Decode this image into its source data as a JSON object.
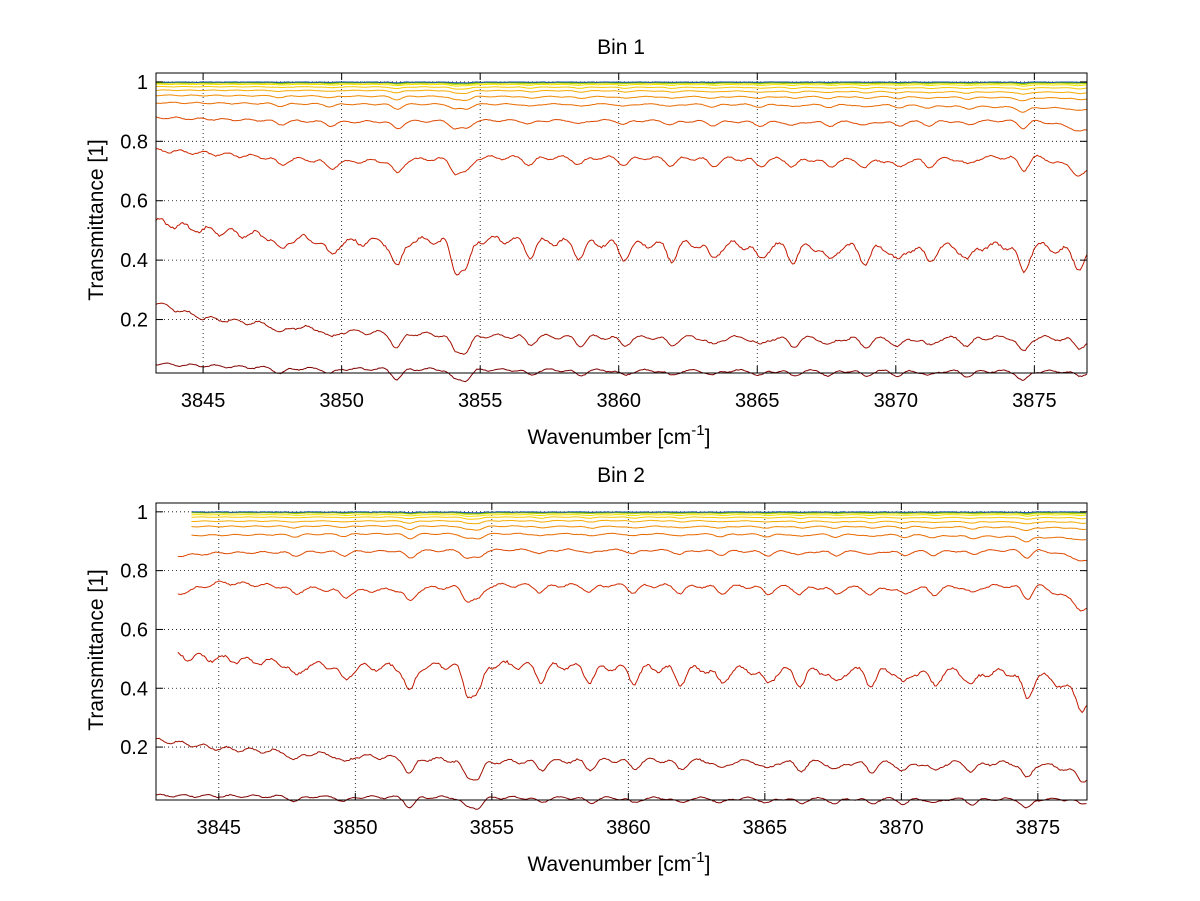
{
  "chart_data": [
    {
      "type": "line",
      "title": "Bin 1",
      "xlabel": "Wavenumber [cm",
      "xlabel_sup": "-1",
      "xlabel_end": "]",
      "ylabel": "Transmittance [1]",
      "xlim": [
        3843.3,
        3876.9
      ],
      "ylim": [
        0.02,
        1.03
      ],
      "xticks": [
        3845,
        3850,
        3855,
        3860,
        3865,
        3870,
        3875
      ],
      "xtick_labels": [
        "3845",
        "3850",
        "3855",
        "3860",
        "3865",
        "3870",
        "3875"
      ],
      "yticks": [
        0.2,
        0.4,
        0.6,
        0.8,
        1
      ],
      "ytick_labels": [
        "0.2",
        "0.4",
        "0.6",
        "0.8",
        "1"
      ],
      "grid": true,
      "legend": "none",
      "series": [
        {
          "color": "#800000",
          "baseline": [
            [
              3843.3,
              0.05
            ],
            [
              3848,
              0.035
            ],
            [
              3860,
              0.028
            ],
            [
              3876.9,
              0.025
            ]
          ]
        },
        {
          "color": "#a01000",
          "baseline": [
            [
              3843.3,
              0.255
            ],
            [
              3845,
              0.205
            ],
            [
              3850,
              0.16
            ],
            [
              3855,
              0.145
            ],
            [
              3860,
              0.14
            ],
            [
              3865,
              0.138
            ],
            [
              3870,
              0.135
            ],
            [
              3875,
              0.14
            ],
            [
              3876.9,
              0.13
            ]
          ]
        },
        {
          "color": "#c01800",
          "baseline": [
            [
              3843.3,
              0.53
            ],
            [
              3845,
              0.5
            ],
            [
              3850,
              0.46
            ],
            [
              3855,
              0.47
            ],
            [
              3860,
              0.455
            ],
            [
              3865,
              0.45
            ],
            [
              3870,
              0.44
            ],
            [
              3875,
              0.45
            ],
            [
              3876.9,
              0.42
            ]
          ]
        },
        {
          "color": "#d02a00",
          "baseline": [
            [
              3843.3,
              0.77
            ],
            [
              3845,
              0.76
            ],
            [
              3850,
              0.73
            ],
            [
              3855,
              0.745
            ],
            [
              3860,
              0.745
            ],
            [
              3865,
              0.74
            ],
            [
              3870,
              0.735
            ],
            [
              3875,
              0.75
            ],
            [
              3876.9,
              0.7
            ]
          ]
        },
        {
          "color": "#de4a00",
          "baseline": [
            [
              3843.3,
              0.88
            ],
            [
              3845,
              0.875
            ],
            [
              3850,
              0.865
            ],
            [
              3855,
              0.87
            ],
            [
              3860,
              0.87
            ],
            [
              3865,
              0.865
            ],
            [
              3870,
              0.865
            ],
            [
              3875,
              0.87
            ],
            [
              3876.9,
              0.84
            ]
          ]
        },
        {
          "color": "#e86a00",
          "baseline": [
            [
              3843.3,
              0.93
            ],
            [
              3850,
              0.925
            ],
            [
              3860,
              0.925
            ],
            [
              3870,
              0.922
            ],
            [
              3876.9,
              0.91
            ]
          ]
        },
        {
          "color": "#f08a00",
          "baseline": [
            [
              3843.3,
              0.955
            ],
            [
              3850,
              0.952
            ],
            [
              3860,
              0.95
            ],
            [
              3870,
              0.95
            ],
            [
              3876.9,
              0.945
            ]
          ]
        },
        {
          "color": "#f5aa00",
          "baseline": [
            [
              3843.3,
              0.972
            ],
            [
              3860,
              0.97
            ],
            [
              3876.9,
              0.965
            ]
          ]
        },
        {
          "color": "#f8c800",
          "baseline": [
            [
              3843.3,
              0.984
            ],
            [
              3860,
              0.982
            ],
            [
              3876.9,
              0.98
            ]
          ]
        },
        {
          "color": "#f4e400",
          "baseline": [
            [
              3843.3,
              0.992
            ],
            [
              3876.9,
              0.99
            ]
          ]
        },
        {
          "color": "#c8d800",
          "baseline": [
            [
              3843.3,
              0.996
            ],
            [
              3876.9,
              0.995
            ]
          ]
        },
        {
          "color": "#60b800",
          "baseline": [
            [
              3843.3,
              0.998
            ],
            [
              3876.9,
              0.998
            ]
          ]
        },
        {
          "color": "#1a50b0",
          "baseline": [
            [
              3843.3,
              1.0
            ],
            [
              3876.9,
              1.0
            ]
          ]
        }
      ],
      "dips": [
        3847.8,
        3849.6,
        3852.0,
        3854.1,
        3854.5,
        3856.8,
        3858.6,
        3860.2,
        3861.9,
        3863.4,
        3865.1,
        3866.3,
        3867.6,
        3868.9,
        3870.1,
        3871.2,
        3872.6,
        3874.6,
        3876.6
      ]
    },
    {
      "type": "line",
      "title": "Bin 2",
      "xlabel": "Wavenumber [cm",
      "xlabel_sup": "-1",
      "xlabel_end": "]",
      "ylabel": "Transmittance [1]",
      "xlim": [
        3842.7,
        3876.8
      ],
      "ylim": [
        0.02,
        1.03
      ],
      "xticks": [
        3845,
        3850,
        3855,
        3860,
        3865,
        3870,
        3875
      ],
      "xtick_labels": [
        "3845",
        "3850",
        "3855",
        "3860",
        "3865",
        "3870",
        "3875"
      ],
      "yticks": [
        0.2,
        0.4,
        0.6,
        0.8,
        1
      ],
      "ytick_labels": [
        "0.2",
        "0.4",
        "0.6",
        "0.8",
        "1"
      ],
      "grid": true,
      "legend": "none",
      "series": [
        {
          "color": "#800000",
          "baseline": [
            [
              3842.7,
              0.035
            ],
            [
              3850,
              0.03
            ],
            [
              3860,
              0.026
            ],
            [
              3876.8,
              0.022
            ]
          ]
        },
        {
          "color": "#a01000",
          "baseline": [
            [
              3842.7,
              0.225
            ],
            [
              3845,
              0.195
            ],
            [
              3850,
              0.17
            ],
            [
              3855,
              0.15
            ],
            [
              3860,
              0.155
            ],
            [
              3865,
              0.15
            ],
            [
              3870,
              0.145
            ],
            [
              3875,
              0.145
            ],
            [
              3876.8,
              0.11
            ]
          ]
        },
        {
          "color": "#c01800",
          "baseline": [
            [
              3843.5,
              0.51
            ],
            [
              3845,
              0.5
            ],
            [
              3850,
              0.47
            ],
            [
              3855,
              0.48
            ],
            [
              3860,
              0.47
            ],
            [
              3865,
              0.46
            ],
            [
              3870,
              0.46
            ],
            [
              3875,
              0.45
            ],
            [
              3876.8,
              0.37
            ]
          ]
        },
        {
          "color": "#d02a00",
          "baseline": [
            [
              3843.5,
              0.72
            ],
            [
              3845,
              0.76
            ],
            [
              3850,
              0.73
            ],
            [
              3855,
              0.75
            ],
            [
              3860,
              0.75
            ],
            [
              3865,
              0.745
            ],
            [
              3870,
              0.74
            ],
            [
              3875,
              0.75
            ],
            [
              3876.8,
              0.68
            ]
          ]
        },
        {
          "color": "#de4a00",
          "baseline": [
            [
              3843.5,
              0.85
            ],
            [
              3845,
              0.86
            ],
            [
              3850,
              0.865
            ],
            [
              3855,
              0.87
            ],
            [
              3860,
              0.87
            ],
            [
              3865,
              0.865
            ],
            [
              3870,
              0.865
            ],
            [
              3875,
              0.87
            ],
            [
              3876.8,
              0.84
            ]
          ]
        },
        {
          "color": "#e86a00",
          "baseline": [
            [
              3844,
              0.92
            ],
            [
              3850,
              0.925
            ],
            [
              3860,
              0.925
            ],
            [
              3870,
              0.922
            ],
            [
              3876.8,
              0.91
            ]
          ]
        },
        {
          "color": "#f08a00",
          "baseline": [
            [
              3844,
              0.95
            ],
            [
              3850,
              0.952
            ],
            [
              3860,
              0.95
            ],
            [
              3870,
              0.95
            ],
            [
              3876.8,
              0.945
            ]
          ]
        },
        {
          "color": "#f5aa00",
          "baseline": [
            [
              3844,
              0.968
            ],
            [
              3860,
              0.97
            ],
            [
              3876.8,
              0.965
            ]
          ]
        },
        {
          "color": "#f8c800",
          "baseline": [
            [
              3844,
              0.982
            ],
            [
              3860,
              0.982
            ],
            [
              3876.8,
              0.98
            ]
          ]
        },
        {
          "color": "#f4e400",
          "baseline": [
            [
              3844,
              0.99
            ],
            [
              3876.8,
              0.99
            ]
          ]
        },
        {
          "color": "#c8d800",
          "baseline": [
            [
              3844,
              0.996
            ],
            [
              3876.8,
              0.995
            ]
          ]
        },
        {
          "color": "#60b800",
          "baseline": [
            [
              3844,
              0.998
            ],
            [
              3876.8,
              0.998
            ]
          ]
        },
        {
          "color": "#1a50b0",
          "baseline": [
            [
              3844,
              1.0
            ],
            [
              3876.8,
              1.0
            ]
          ]
        }
      ],
      "dips": [
        3847.8,
        3849.6,
        3852.0,
        3854.1,
        3854.5,
        3856.8,
        3858.6,
        3860.2,
        3861.9,
        3863.4,
        3865.1,
        3866.3,
        3867.6,
        3868.9,
        3870.1,
        3871.2,
        3872.6,
        3874.6,
        3876.6
      ]
    }
  ]
}
